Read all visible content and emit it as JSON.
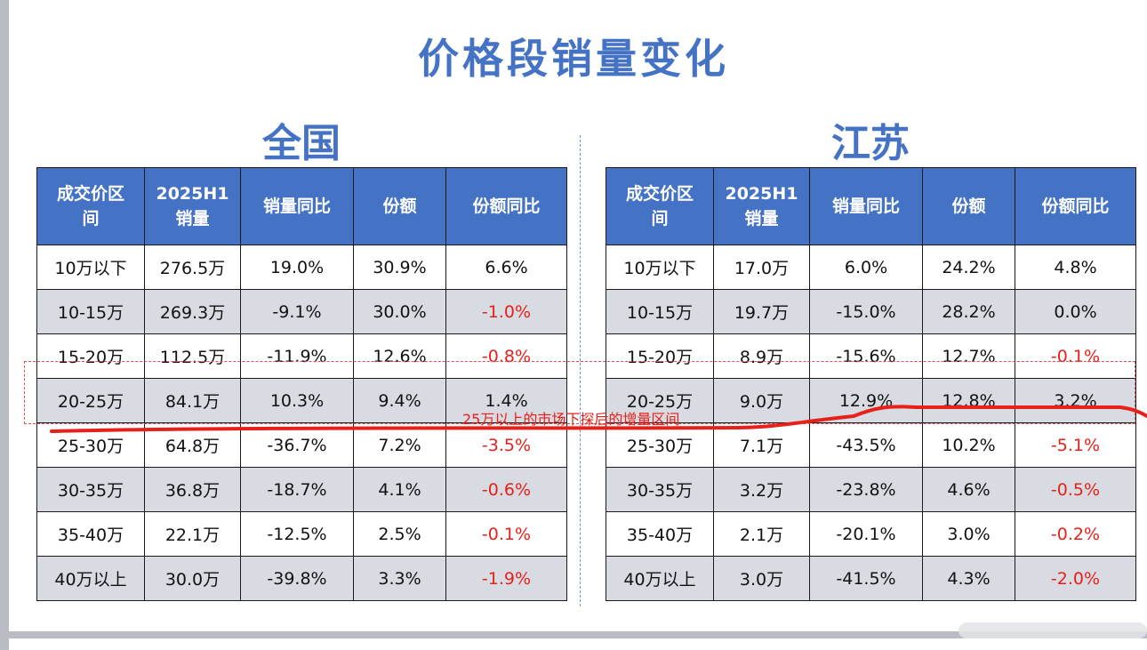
{
  "title": "价格段销量变化",
  "headers": [
    "成交价区间",
    "2025H1销量",
    "销量同比",
    "份额",
    "份额同比"
  ],
  "headers_lines": [
    [
      "成交价区",
      "间"
    ],
    [
      "2025H1",
      "销量"
    ],
    [
      "销量同比"
    ],
    [
      "份额"
    ],
    [
      "份额同比"
    ]
  ],
  "regions": [
    {
      "name": "全国",
      "rows": [
        {
          "range": "10万以下",
          "sales": "276.5万",
          "sales_yoy": "19.0%",
          "share": "30.9%",
          "share_yoy": "6.6%",
          "share_yoy_negative": false
        },
        {
          "range": "10-15万",
          "sales": "269.3万",
          "sales_yoy": "-9.1%",
          "share": "30.0%",
          "share_yoy": "-1.0%",
          "share_yoy_negative": true
        },
        {
          "range": "15-20万",
          "sales": "112.5万",
          "sales_yoy": "-11.9%",
          "share": "12.6%",
          "share_yoy": "-0.8%",
          "share_yoy_negative": true
        },
        {
          "range": "20-25万",
          "sales": "84.1万",
          "sales_yoy": "10.3%",
          "share": "9.4%",
          "share_yoy": "1.4%",
          "share_yoy_negative": false
        },
        {
          "range": "25-30万",
          "sales": "64.8万",
          "sales_yoy": "-36.7%",
          "share": "7.2%",
          "share_yoy": "-3.5%",
          "share_yoy_negative": true
        },
        {
          "range": "30-35万",
          "sales": "36.8万",
          "sales_yoy": "-18.7%",
          "share": "4.1%",
          "share_yoy": "-0.6%",
          "share_yoy_negative": true
        },
        {
          "range": "35-40万",
          "sales": "22.1万",
          "sales_yoy": "-12.5%",
          "share": "2.5%",
          "share_yoy": "-0.1%",
          "share_yoy_negative": true
        },
        {
          "range": "40万以上",
          "sales": "30.0万",
          "sales_yoy": "-39.8%",
          "share": "3.3%",
          "share_yoy": "-1.9%",
          "share_yoy_negative": true
        }
      ]
    },
    {
      "name": "江苏",
      "rows": [
        {
          "range": "10万以下",
          "sales": "17.0万",
          "sales_yoy": "6.0%",
          "share": "24.2%",
          "share_yoy": "4.8%",
          "share_yoy_negative": false
        },
        {
          "range": "10-15万",
          "sales": "19.7万",
          "sales_yoy": "-15.0%",
          "share": "28.2%",
          "share_yoy": "0.0%",
          "share_yoy_negative": false
        },
        {
          "range": "15-20万",
          "sales": "8.9万",
          "sales_yoy": "-15.6%",
          "share": "12.7%",
          "share_yoy": "-0.1%",
          "share_yoy_negative": true
        },
        {
          "range": "20-25万",
          "sales": "9.0万",
          "sales_yoy": "12.9%",
          "share": "12.8%",
          "share_yoy": "3.2%",
          "share_yoy_negative": false
        },
        {
          "range": "25-30万",
          "sales": "7.1万",
          "sales_yoy": "-43.5%",
          "share": "10.2%",
          "share_yoy": "-5.1%",
          "share_yoy_negative": true
        },
        {
          "range": "30-35万",
          "sales": "3.2万",
          "sales_yoy": "-23.8%",
          "share": "4.6%",
          "share_yoy": "-0.5%",
          "share_yoy_negative": true
        },
        {
          "range": "35-40万",
          "sales": "2.1万",
          "sales_yoy": "-20.1%",
          "share": "3.0%",
          "share_yoy": "-0.2%",
          "share_yoy_negative": true
        },
        {
          "range": "40万以上",
          "sales": "3.0万",
          "sales_yoy": "-41.5%",
          "share": "4.3%",
          "share_yoy": "-2.0%",
          "share_yoy_negative": true
        }
      ]
    }
  ],
  "annotation": "25万以上的市场下探后的增量区间",
  "colors": {
    "header_bg": "#4472c4",
    "title": "#4472c4",
    "negative": "#e8201a",
    "row_alt": "#d8dbe2"
  }
}
